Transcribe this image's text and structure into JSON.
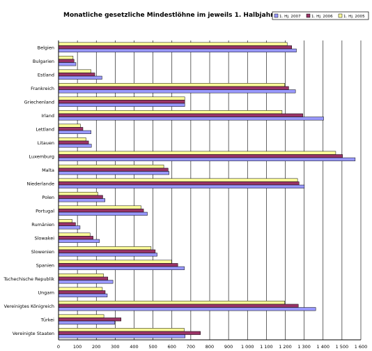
{
  "chart_data": {
    "type": "bar",
    "orientation": "horizontal",
    "title": "Monatliche gesetzliche Mindestlöhne im jeweils 1. Halbjahr in Euro",
    "categories": [
      "Belgien",
      "Bulgarien",
      "Estland",
      "Frankreich",
      "Griechenland",
      "Irland",
      "Lettland",
      "Litauen",
      "Luxemburg",
      "Malta",
      "Niederlande",
      "Polen",
      "Portugal",
      "Rumänien",
      "Slowakei",
      "Slowenien",
      "Spanien",
      "Tschechische Republik",
      "Ungarn",
      "Vereinigtes Königreich",
      "Türkei",
      "Vereinigte Staaten"
    ],
    "series": [
      {
        "name": "1. Hj. 2007",
        "color": "#9999ff",
        "values": [
          1259,
          92,
          230,
          1254,
          668,
          1403,
          172,
          174,
          1570,
          585,
          1301,
          246,
          470,
          114,
          217,
          522,
          666,
          288,
          258,
          1361,
          298,
          670
        ]
      },
      {
        "name": "1. Hj. 2006",
        "color": "#993366",
        "values": [
          1234,
          82,
          192,
          1218,
          668,
          1293,
          129,
          159,
          1503,
          580,
          1273,
          234,
          450,
          90,
          183,
          512,
          631,
          261,
          247,
          1269,
          331,
          751
        ]
      },
      {
        "name": "1. Hj. 2005",
        "color": "#ffff99",
        "values": [
          1210,
          77,
          172,
          1197,
          668,
          1183,
          116,
          145,
          1467,
          557,
          1265,
          208,
          437,
          72,
          167,
          490,
          599,
          238,
          232,
          1197,
          240,
          665
        ]
      }
    ],
    "xlim": [
      0,
      1600
    ],
    "xticks": [
      "0",
      "100",
      "200",
      "300",
      "400",
      "500",
      "600",
      "700",
      "800",
      "900",
      "1 000",
      "1 100",
      "1 200",
      "1 300",
      "1 400",
      "1 500",
      "1 600"
    ],
    "grid": "vertical",
    "legend_position": "top-right"
  }
}
